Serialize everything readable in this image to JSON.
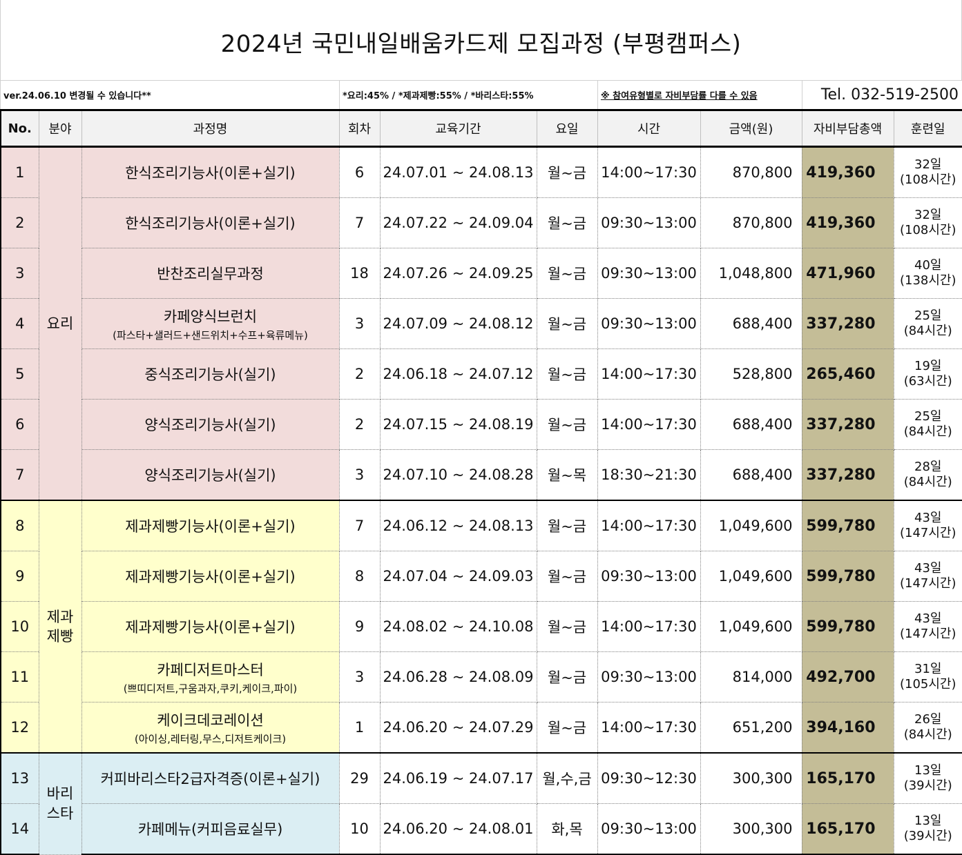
{
  "title": "2024년 국민내일배움카드제 모집과정 (부평캠퍼스)",
  "info": {
    "version_note": "ver.24.06.10 변경될 수 있습니다**",
    "rates": "*요리:45% / *제과제빵:55% / *바리스타:55%",
    "participation_note": "※ 참여유형별로 자비부담률 다를 수 있음",
    "phone": "Tel. 032-519-2500"
  },
  "headers": {
    "no": "No.",
    "field": "분야",
    "course": "과정명",
    "round": "회차",
    "period": "교육기간",
    "weekday": "요일",
    "time": "시간",
    "amount": "금액(원)",
    "self_pay": "자비부담총액",
    "training_days": "훈련일"
  },
  "groups": [
    {
      "name": "요리",
      "color": "#f2dcdb"
    },
    {
      "name": "제과\n제빵",
      "color": "#ffffcc"
    },
    {
      "name": "바리\n스타",
      "color": "#dbeef3"
    }
  ],
  "highlight_color": "#c4bd97",
  "rows": [
    {
      "no": "1",
      "course": "한식조리기능사(이론+실기)",
      "sub": "",
      "round": "6",
      "period": "24.07.01 ~ 24.08.13",
      "weekday": "월~금",
      "time": "14:00~17:30",
      "amount": "870,800",
      "self_pay": "419,360",
      "days": "32일",
      "hours": "(108시간)"
    },
    {
      "no": "2",
      "course": "한식조리기능사(이론+실기)",
      "sub": "",
      "round": "7",
      "period": "24.07.22 ~ 24.09.04",
      "weekday": "월~금",
      "time": "09:30~13:00",
      "amount": "870,800",
      "self_pay": "419,360",
      "days": "32일",
      "hours": "(108시간)"
    },
    {
      "no": "3",
      "course": "반찬조리실무과정",
      "sub": "",
      "round": "18",
      "period": "24.07.26 ~ 24.09.25",
      "weekday": "월~금",
      "time": "09:30~13:00",
      "amount": "1,048,800",
      "self_pay": "471,960",
      "days": "40일",
      "hours": "(138시간)"
    },
    {
      "no": "4",
      "course": "카페양식브런치",
      "sub": "(파스타+샐러드+샌드위치+수프+육류메뉴)",
      "round": "3",
      "period": "24.07.09 ~ 24.08.12",
      "weekday": "월~금",
      "time": "09:30~13:00",
      "amount": "688,400",
      "self_pay": "337,280",
      "days": "25일",
      "hours": "(84시간)"
    },
    {
      "no": "5",
      "course": "중식조리기능사(실기)",
      "sub": "",
      "round": "2",
      "period": "24.06.18 ~ 24.07.12",
      "weekday": "월~금",
      "time": "14:00~17:30",
      "amount": "528,800",
      "self_pay": "265,460",
      "days": "19일",
      "hours": "(63시간)"
    },
    {
      "no": "6",
      "course": "양식조리기능사(실기)",
      "sub": "",
      "round": "2",
      "period": "24.07.15 ~ 24.08.19",
      "weekday": "월~금",
      "time": "14:00~17:30",
      "amount": "688,400",
      "self_pay": "337,280",
      "days": "25일",
      "hours": "(84시간)"
    },
    {
      "no": "7",
      "course": "양식조리기능사(실기)",
      "sub": "",
      "round": "3",
      "period": "24.07.10 ~ 24.08.28",
      "weekday": "월~목",
      "time": "18:30~21:30",
      "amount": "688,400",
      "self_pay": "337,280",
      "days": "28일",
      "hours": "(84시간)"
    },
    {
      "no": "8",
      "course": "제과제빵기능사(이론+실기)",
      "sub": "",
      "round": "7",
      "period": "24.06.12 ~ 24.08.13",
      "weekday": "월~금",
      "time": "14:00~17:30",
      "amount": "1,049,600",
      "self_pay": "599,780",
      "days": "43일",
      "hours": "(147시간)"
    },
    {
      "no": "9",
      "course": "제과제빵기능사(이론+실기)",
      "sub": "",
      "round": "8",
      "period": "24.07.04 ~ 24.09.03",
      "weekday": "월~금",
      "time": "09:30~13:00",
      "amount": "1,049,600",
      "self_pay": "599,780",
      "days": "43일",
      "hours": "(147시간)"
    },
    {
      "no": "10",
      "course": "제과제빵기능사(이론+실기)",
      "sub": "",
      "round": "9",
      "period": "24.08.02 ~ 24.10.08",
      "weekday": "월~금",
      "time": "14:00~17:30",
      "amount": "1,049,600",
      "self_pay": "599,780",
      "days": "43일",
      "hours": "(147시간)"
    },
    {
      "no": "11",
      "course": "카페디저트마스터",
      "sub": "(쁘띠디저트,구움과자,쿠키,케이크,파이)",
      "round": "3",
      "period": "24.06.28 ~ 24.08.09",
      "weekday": "월~금",
      "time": "09:30~13:00",
      "amount": "814,000",
      "self_pay": "492,700",
      "days": "31일",
      "hours": "(105시간)"
    },
    {
      "no": "12",
      "course": "케이크데코레이션",
      "sub": "(아이싱,레터링,무스,디저트케이크)",
      "round": "1",
      "period": "24.06.20 ~ 24.07.29",
      "weekday": "월~금",
      "time": "14:00~17:30",
      "amount": "651,200",
      "self_pay": "394,160",
      "days": "26일",
      "hours": "(84시간)"
    },
    {
      "no": "13",
      "course": "커피바리스타2급자격증(이론+실기)",
      "sub": "",
      "round": "29",
      "period": "24.06.19 ~ 24.07.17",
      "weekday": "월,수,금",
      "time": "09:30~12:30",
      "amount": "300,300",
      "self_pay": "165,170",
      "days": "13일",
      "hours": "(39시간)"
    },
    {
      "no": "14",
      "course": "카페메뉴(커피음료실무)",
      "sub": "",
      "round": "10",
      "period": "24.06.20 ~ 24.08.01",
      "weekday": "화,목",
      "time": "09:30~13:00",
      "amount": "300,300",
      "self_pay": "165,170",
      "days": "13일",
      "hours": "(39시간)"
    }
  ]
}
